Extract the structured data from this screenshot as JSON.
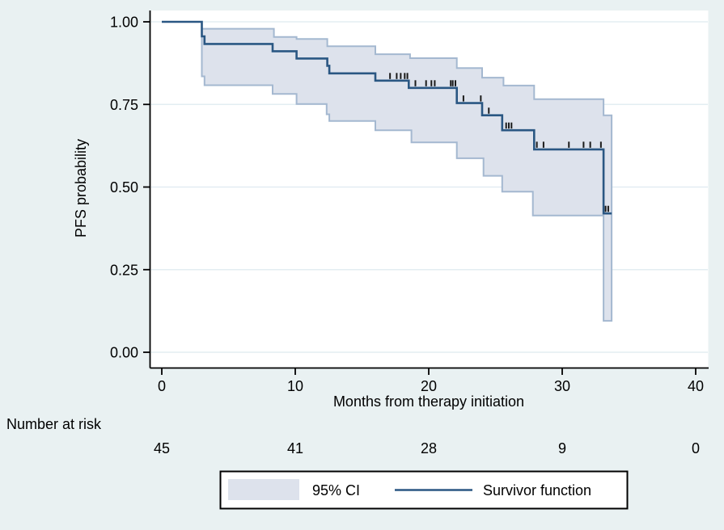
{
  "figure": {
    "background": "#e9f1f2",
    "plot_background": "#ffffff",
    "grid_color": "#e3edf2",
    "axis_color": "#000000",
    "ci_fill": "#dde2ec",
    "ci_edge": "#a4b8d0",
    "line_color": "#2a5783",
    "censor_color": "#1a1a1a"
  },
  "chart_data": {
    "type": "line",
    "subtype": "kaplan-meier-step",
    "title": "",
    "xlabel": "Months from therapy initiation",
    "ylabel": "PFS probability",
    "xlim": [
      0,
      40
    ],
    "ylim": [
      0,
      1
    ],
    "grid": true,
    "legend_position": "bottom",
    "x_ticks": [
      {
        "v": 0,
        "label": "0"
      },
      {
        "v": 10,
        "label": "10"
      },
      {
        "v": 20,
        "label": "20"
      },
      {
        "v": 30,
        "label": "30"
      },
      {
        "v": 40,
        "label": "40"
      }
    ],
    "y_ticks": [
      {
        "v": 0,
        "label": "0.00"
      },
      {
        "v": 0.25,
        "label": "0.25"
      },
      {
        "v": 0.5,
        "label": "0.50"
      },
      {
        "v": 0.75,
        "label": "0.75"
      },
      {
        "v": 1,
        "label": "1.00"
      }
    ],
    "series": [
      {
        "name": "Survivor function",
        "role": "survivor",
        "steps": [
          [
            0,
            1.0
          ],
          [
            3.0,
            0.956
          ],
          [
            3.2,
            0.933
          ],
          [
            8.3,
            0.911
          ],
          [
            10.1,
            0.889
          ],
          [
            12.4,
            0.867
          ],
          [
            12.55,
            0.844
          ],
          [
            16.0,
            0.822
          ],
          [
            18.5,
            0.8
          ],
          [
            22.1,
            0.754
          ],
          [
            24.0,
            0.717
          ],
          [
            25.5,
            0.672
          ],
          [
            27.9,
            0.614
          ],
          [
            33.1,
            0.42
          ]
        ],
        "end": 33.7
      },
      {
        "name": "95% CI upper",
        "role": "ci-upper",
        "steps": [
          [
            3.0,
            1.0
          ],
          [
            3.0,
            0.979
          ],
          [
            8.4,
            0.954
          ],
          [
            10.1,
            0.948
          ],
          [
            12.4,
            0.926
          ],
          [
            16.0,
            0.902
          ],
          [
            18.6,
            0.89
          ],
          [
            22.1,
            0.86
          ],
          [
            24.0,
            0.831
          ],
          [
            25.6,
            0.807
          ],
          [
            27.9,
            0.766
          ],
          [
            33.1,
            0.717
          ]
        ],
        "end": 33.7
      },
      {
        "name": "95% CI lower",
        "role": "ci-lower",
        "steps": [
          [
            3.0,
            1.0
          ],
          [
            3.0,
            0.835
          ],
          [
            3.2,
            0.808
          ],
          [
            8.3,
            0.782
          ],
          [
            10.1,
            0.751
          ],
          [
            12.35,
            0.72
          ],
          [
            12.55,
            0.7
          ],
          [
            16.0,
            0.672
          ],
          [
            18.7,
            0.635
          ],
          [
            22.1,
            0.587
          ],
          [
            24.1,
            0.534
          ],
          [
            25.5,
            0.486
          ],
          [
            27.8,
            0.414
          ],
          [
            33.1,
            0.095
          ]
        ],
        "end": 33.7
      }
    ],
    "censor_marks": [
      {
        "t": 17.1,
        "p": 0.822
      },
      {
        "t": 17.6,
        "p": 0.822
      },
      {
        "t": 17.9,
        "p": 0.822
      },
      {
        "t": 18.2,
        "p": 0.822
      },
      {
        "t": 18.4,
        "p": 0.822
      },
      {
        "t": 19.0,
        "p": 0.8
      },
      {
        "t": 19.8,
        "p": 0.8
      },
      {
        "t": 20.2,
        "p": 0.8
      },
      {
        "t": 20.45,
        "p": 0.8
      },
      {
        "t": 21.65,
        "p": 0.8
      },
      {
        "t": 21.8,
        "p": 0.8
      },
      {
        "t": 22.0,
        "p": 0.8
      },
      {
        "t": 22.6,
        "p": 0.754
      },
      {
        "t": 23.9,
        "p": 0.754
      },
      {
        "t": 24.5,
        "p": 0.717
      },
      {
        "t": 25.8,
        "p": 0.672
      },
      {
        "t": 26.0,
        "p": 0.672
      },
      {
        "t": 26.2,
        "p": 0.672
      },
      {
        "t": 28.1,
        "p": 0.614
      },
      {
        "t": 28.6,
        "p": 0.614
      },
      {
        "t": 30.5,
        "p": 0.614
      },
      {
        "t": 31.6,
        "p": 0.614
      },
      {
        "t": 32.1,
        "p": 0.614
      },
      {
        "t": 32.9,
        "p": 0.614
      },
      {
        "t": 33.25,
        "p": 0.42
      },
      {
        "t": 33.45,
        "p": 0.42
      }
    ],
    "risk_table": {
      "label": "Number at risk",
      "times": [
        0,
        10,
        20,
        30,
        40
      ],
      "counts": [
        "45",
        "41",
        "28",
        "9",
        "0"
      ]
    },
    "legend": [
      {
        "label": "95% CI",
        "marker": "area"
      },
      {
        "label": "Survivor function",
        "marker": "line"
      }
    ]
  }
}
